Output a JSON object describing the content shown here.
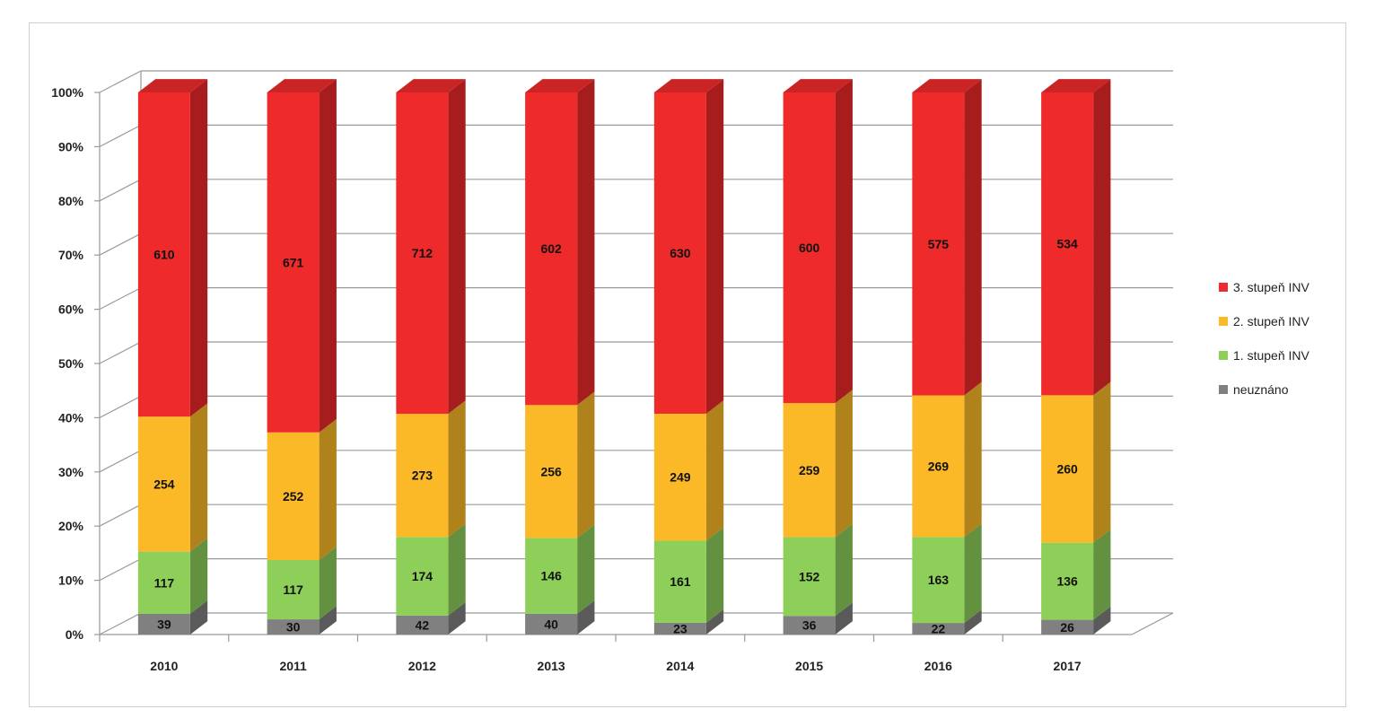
{
  "chart_data": {
    "type": "bar",
    "stacked": "percent",
    "three_d": true,
    "categories": [
      "2010",
      "2011",
      "2012",
      "2013",
      "2014",
      "2015",
      "2016",
      "2017"
    ],
    "series": [
      {
        "name": "neuznáno",
        "color": "#808080",
        "values": [
          39,
          30,
          42,
          40,
          23,
          36,
          22,
          26
        ]
      },
      {
        "name": "1. stupeň INV",
        "color": "#8ecf5a",
        "values": [
          117,
          117,
          174,
          146,
          161,
          152,
          163,
          136
        ]
      },
      {
        "name": "2. stupeň INV",
        "color": "#fbb928",
        "values": [
          254,
          252,
          273,
          256,
          249,
          259,
          269,
          260
        ]
      },
      {
        "name": "3. stupeň INV",
        "color": "#ee2a2a",
        "values": [
          610,
          671,
          712,
          602,
          630,
          600,
          575,
          534
        ]
      }
    ],
    "y_ticks": [
      "0%",
      "10%",
      "20%",
      "30%",
      "40%",
      "50%",
      "60%",
      "70%",
      "80%",
      "90%",
      "100%"
    ],
    "ylim": [
      0,
      100
    ],
    "grid": true,
    "legend_position": "right",
    "legend_order": [
      "3. stupeň INV",
      "2. stupeň INV",
      "1. stupeň INV",
      "neuznáno"
    ]
  }
}
